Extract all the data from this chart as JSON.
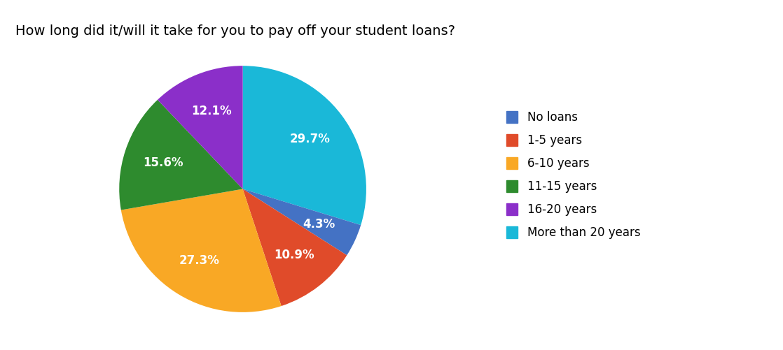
{
  "title": "How long did it/will it take for you to pay off your student loans?",
  "legend_labels": [
    "No loans",
    "1-5 years",
    "6-10 years",
    "11-15 years",
    "16-20 years",
    "More than 20 years"
  ],
  "legend_colors": [
    "#4472C4",
    "#E04B2A",
    "#F9A825",
    "#2E8B2E",
    "#8B2FC9",
    "#1AB8D8"
  ],
  "plot_values": [
    29.7,
    4.3,
    10.9,
    27.3,
    15.6,
    12.1
  ],
  "plot_colors": [
    "#1AB8D8",
    "#4472C4",
    "#E04B2A",
    "#F9A825",
    "#2E8B2E",
    "#8B2FC9"
  ],
  "plot_pcts": [
    "29.7%",
    "4.3%",
    "10.9%",
    "27.3%",
    "15.6%",
    "12.1%"
  ],
  "title_fontsize": 14,
  "label_fontsize": 12,
  "legend_fontsize": 12,
  "background_color": "#ffffff",
  "startangle": 90,
  "pct_distance": 0.68
}
